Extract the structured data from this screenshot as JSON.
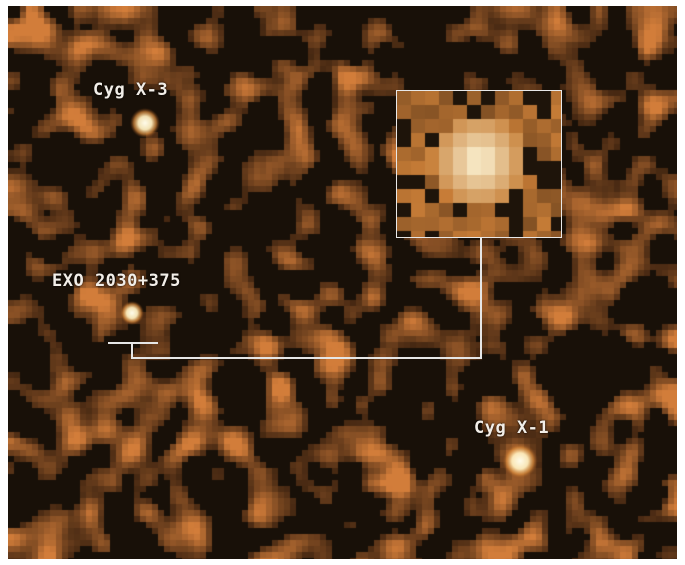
{
  "sources": [
    {
      "id": "cyg-x3",
      "label": "Cyg X-3"
    },
    {
      "id": "exo",
      "label": "EXO 2030+375"
    },
    {
      "id": "cyg-x1",
      "label": "Cyg X-1"
    }
  ],
  "colors": {
    "background": "#1a120a",
    "emission_low": "#7a4a22",
    "emission_mid": "#c98a4a",
    "emission_high": "#fff6d0",
    "label": "#f2eee8",
    "inset_border": "#e8e8e8"
  }
}
